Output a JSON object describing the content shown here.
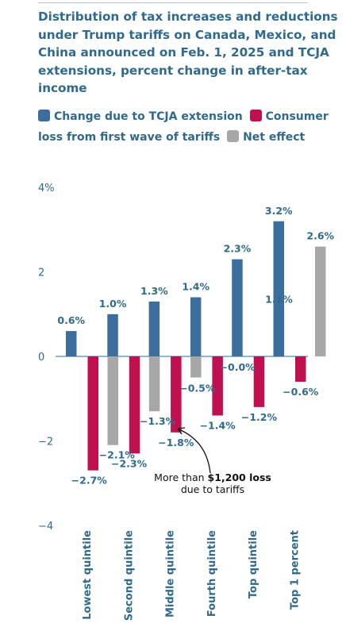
{
  "title": "Distribution of tax increases and reductions under Trump tariffs on Canada, Mexico, and China announced on Feb. 1, 2025 and TCJA extensions, percent change in after-tax income",
  "colors": {
    "tcja": "#3b6e9c",
    "tariff": "#c01050",
    "net": "#a7a7a7",
    "text": "#2f6a8c"
  },
  "legend": {
    "tcja": "Change due to TCJA extension",
    "tariff": "Consumer loss from first wave of tariffs",
    "net": "Net effect"
  },
  "annotation": {
    "prefix": "More than ",
    "bold": "$1,200 loss",
    "line2": "due to tariffs"
  },
  "chart_data": {
    "type": "bar",
    "title": "Distribution of tax increases and reductions under Trump tariffs on Canada, Mexico, and China announced on Feb. 1, 2025 and TCJA extensions, percent change in after-tax income",
    "categories": [
      "Lowest quintile",
      "Second quintile",
      "Middle quintile",
      "Fourth quintile",
      "Top quintile",
      "Top 1 percent"
    ],
    "series": [
      {
        "name": "Change due to TCJA extension",
        "values": [
          0.6,
          1.0,
          1.3,
          1.4,
          2.3,
          3.2
        ],
        "labels": [
          "0.6%",
          "1.0%",
          "1.3%",
          "1.4%",
          "2.3%",
          "3.2%"
        ]
      },
      {
        "name": "Consumer loss from first wave of tariffs",
        "values": [
          -2.7,
          -2.3,
          -1.8,
          -1.4,
          -1.2,
          -0.6
        ],
        "labels": [
          "−2.7%",
          "−2.3%",
          "−1.8%",
          "−1.4%",
          "−1.2%",
          "−0.6%"
        ]
      },
      {
        "name": "Net effect",
        "values": [
          -2.1,
          -1.3,
          -0.5,
          -0.0,
          1.1,
          2.6
        ],
        "labels": [
          "−2.1%",
          "−1.3%",
          "−0.5%",
          "−0.0%",
          "1.1%",
          "2.6%"
        ]
      }
    ],
    "yticks": [
      "4%",
      "2",
      "0",
      "−2",
      "−4"
    ],
    "ytick_values": [
      4,
      2,
      0,
      -2,
      -4
    ],
    "ylim": [
      -4,
      4
    ],
    "xlabel": "",
    "ylabel": "",
    "grid": false,
    "legend_position": "top"
  }
}
